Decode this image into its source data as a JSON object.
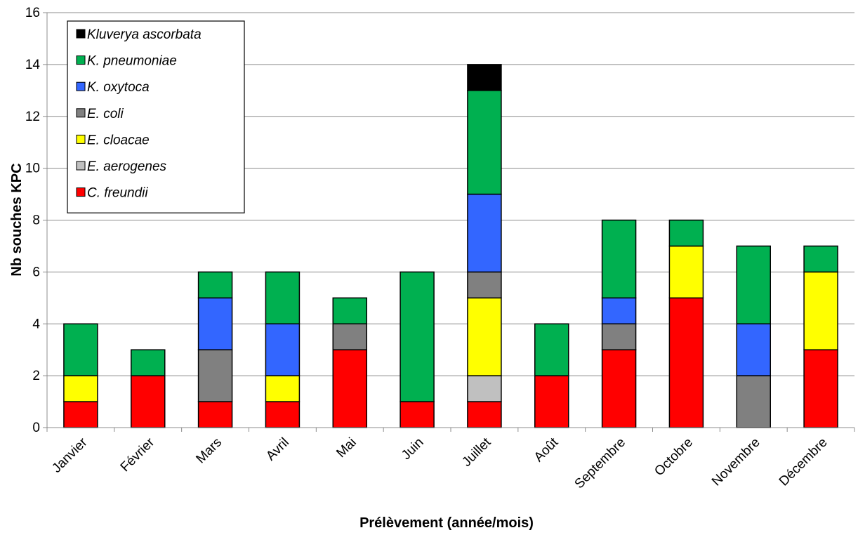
{
  "chart_data": {
    "type": "bar",
    "stacked": true,
    "title": "",
    "xlabel": "Prélèvement (année/mois)",
    "ylabel": "Nb souches KPC",
    "ylim": [
      0,
      16
    ],
    "yticks": [
      0,
      2,
      4,
      6,
      8,
      10,
      12,
      14,
      16
    ],
    "grid": true,
    "legend_position": "top-left",
    "categories": [
      "Janvier",
      "Février",
      "Mars",
      "Avril",
      "Mai",
      "Juin",
      "Juillet",
      "Août",
      "Septembre",
      "Octobre",
      "Novembre",
      "Décembre"
    ],
    "series": [
      {
        "name": "C. freundii",
        "color": "#ff0000",
        "values": [
          1,
          2,
          1,
          1,
          3,
          1,
          1,
          2,
          3,
          5,
          0,
          3
        ]
      },
      {
        "name": "E. aerogenes",
        "color": "#c0c0c0",
        "values": [
          0,
          0,
          0,
          0,
          0,
          0,
          1,
          0,
          0,
          0,
          0,
          0
        ]
      },
      {
        "name": "E. cloacae",
        "color": "#ffff00",
        "values": [
          1,
          0,
          0,
          1,
          0,
          0,
          3,
          0,
          0,
          2,
          0,
          3
        ]
      },
      {
        "name": "E. coli",
        "color": "#808080",
        "values": [
          0,
          0,
          2,
          0,
          1,
          0,
          1,
          0,
          1,
          0,
          2,
          0
        ]
      },
      {
        "name": "K. oxytoca",
        "color": "#3366ff",
        "values": [
          0,
          0,
          2,
          2,
          0,
          0,
          3,
          0,
          1,
          0,
          2,
          0
        ]
      },
      {
        "name": "K. pneumoniae",
        "color": "#00b050",
        "values": [
          2,
          1,
          1,
          2,
          1,
          5,
          4,
          2,
          3,
          1,
          3,
          1
        ]
      },
      {
        "name": "Kluverya ascorbata",
        "color": "#000000",
        "values": [
          0,
          0,
          0,
          0,
          0,
          0,
          1,
          0,
          0,
          0,
          0,
          0
        ]
      }
    ]
  }
}
